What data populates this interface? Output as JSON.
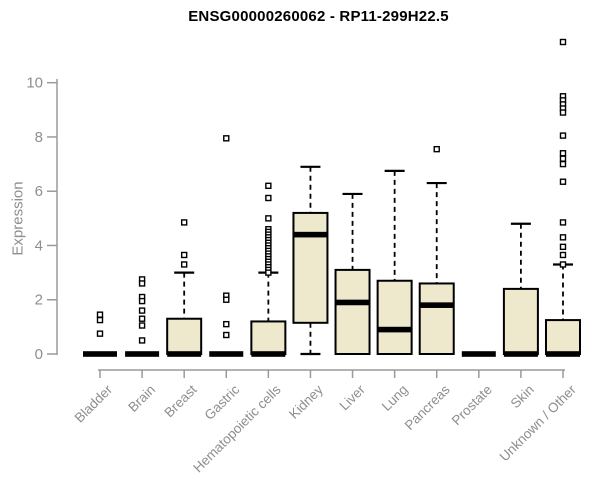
{
  "title": "ENSG00000260062 - RP11-299H22.5",
  "chart_data": {
    "type": "boxplot",
    "title": "ENSG00000260062 - RP11-299H22.5",
    "ylabel": "Expression",
    "xlabel": "",
    "yticks": [
      0,
      2,
      4,
      6,
      8,
      10
    ],
    "ylim": [
      0,
      11.6
    ],
    "grid": false,
    "legend": null,
    "colors": {
      "box_fill": "#EEE8CD",
      "box_border": "#000000",
      "median": "#000000",
      "whisker": "#000000",
      "axis": "#9a9a9a",
      "text": "#8e8e8e",
      "title": "#000000"
    },
    "categories": [
      "Bladder",
      "Brain",
      "Breast",
      "Gastric",
      "Hematopoietic cells",
      "Kidney",
      "Liver",
      "Lung",
      "Pancreas",
      "Prostate",
      "Skin",
      "Unknown / Other"
    ],
    "series": [
      {
        "label": "Bladder",
        "q1": 0,
        "median": 0,
        "q3": 0,
        "whisker_low": 0,
        "whisker_high": 0,
        "outliers": [
          1.45,
          1.25,
          0.75
        ]
      },
      {
        "label": "Brain",
        "q1": 0,
        "median": 0,
        "q3": 0,
        "whisker_low": 0,
        "whisker_high": 0,
        "outliers": [
          2.75,
          2.6,
          2.1,
          1.95,
          1.6,
          1.3,
          1.05,
          0.5
        ]
      },
      {
        "label": "Breast",
        "q1": 0,
        "median": 0,
        "q3": 1.3,
        "whisker_low": 0,
        "whisker_high": 3.0,
        "outliers": [
          4.85,
          3.65,
          3.3
        ]
      },
      {
        "label": "Gastric",
        "q1": 0,
        "median": 0,
        "q3": 0,
        "whisker_low": 0,
        "whisker_high": 0,
        "outliers": [
          7.95,
          2.15,
          2.0,
          1.1,
          0.7
        ]
      },
      {
        "label": "Hematopoietic cells",
        "q1": 0,
        "median": 0,
        "q3": 1.2,
        "whisker_low": 0,
        "whisker_high": 3.0,
        "outliers": [
          6.2,
          5.75,
          5.0,
          4.6,
          4.5,
          4.4,
          4.3,
          4.2,
          4.1,
          4.0,
          3.9,
          3.8,
          3.7,
          3.6,
          3.5,
          3.4,
          3.3,
          3.2,
          3.1,
          3.0
        ]
      },
      {
        "label": "Kidney",
        "q1": 1.15,
        "median": 4.4,
        "q3": 5.2,
        "whisker_low": 0,
        "whisker_high": 6.9,
        "outliers": []
      },
      {
        "label": "Liver",
        "q1": 0,
        "median": 1.9,
        "q3": 3.1,
        "whisker_low": 0,
        "whisker_high": 5.9,
        "outliers": []
      },
      {
        "label": "Lung",
        "q1": 0,
        "median": 0.9,
        "q3": 2.7,
        "whisker_low": 0,
        "whisker_high": 6.75,
        "outliers": []
      },
      {
        "label": "Pancreas",
        "q1": 0,
        "median": 1.8,
        "q3": 2.6,
        "whisker_low": 0,
        "whisker_high": 6.3,
        "outliers": [
          7.55
        ]
      },
      {
        "label": "Prostate",
        "q1": 0,
        "median": 0,
        "q3": 0,
        "whisker_low": 0,
        "whisker_high": 0,
        "outliers": []
      },
      {
        "label": "Skin",
        "q1": 0,
        "median": 0,
        "q3": 2.4,
        "whisker_low": 0,
        "whisker_high": 4.8,
        "outliers": []
      },
      {
        "label": "Unknown / Other",
        "q1": 0,
        "median": 0,
        "q3": 1.25,
        "whisker_low": 0,
        "whisker_high": 3.3,
        "outliers": [
          11.5,
          9.5,
          9.35,
          9.2,
          9.05,
          8.9,
          8.05,
          7.4,
          7.2,
          7.0,
          6.35,
          4.85,
          4.3,
          3.95,
          3.65,
          3.3
        ]
      }
    ]
  }
}
